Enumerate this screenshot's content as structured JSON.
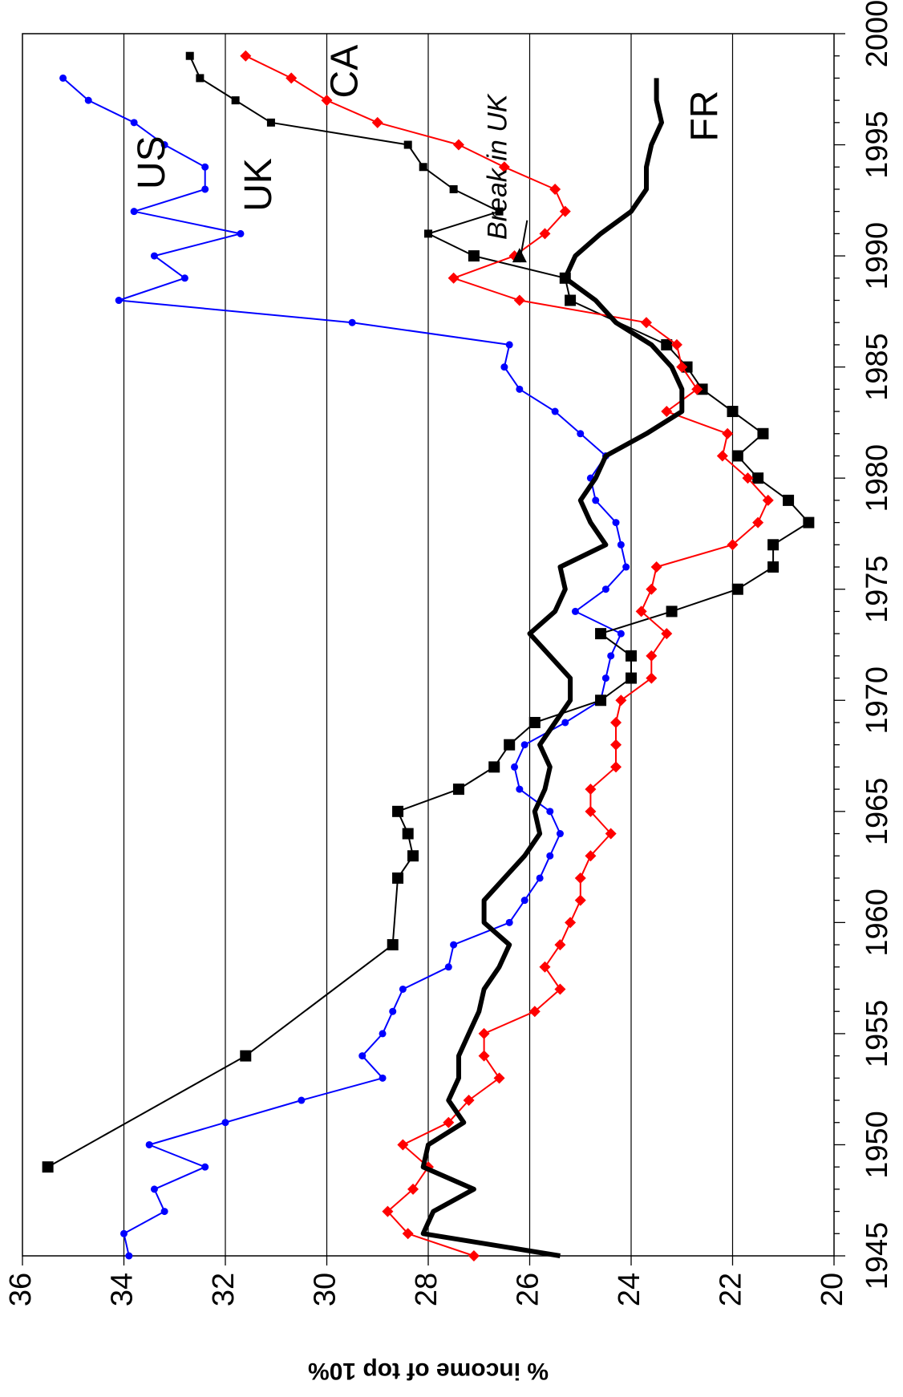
{
  "chart_data": {
    "type": "line",
    "orientation": "rotated-90-clockwise",
    "title": "",
    "xlabel": "",
    "ylabel": "% income of top 10%",
    "xlim": [
      1945,
      2000
    ],
    "ylim": [
      20,
      36
    ],
    "xticks": [
      1945,
      1950,
      1955,
      1960,
      1965,
      1970,
      1975,
      1980,
      1985,
      1990,
      1995,
      2000
    ],
    "yticks": [
      20,
      22,
      24,
      26,
      28,
      30,
      32,
      34,
      36
    ],
    "grid": "horizontal-major",
    "series": [
      {
        "label": "US",
        "color": "#0000ff",
        "marker": "circle",
        "points": [
          [
            1945,
            33.9
          ],
          [
            1946,
            34.0
          ],
          [
            1947,
            33.2
          ],
          [
            1948,
            33.4
          ],
          [
            1949,
            32.4
          ],
          [
            1950,
            33.5
          ],
          [
            1951,
            32.0
          ],
          [
            1952,
            30.5
          ],
          [
            1953,
            28.9
          ],
          [
            1954,
            29.3
          ],
          [
            1955,
            28.9
          ],
          [
            1956,
            28.7
          ],
          [
            1957,
            28.5
          ],
          [
            1958,
            27.6
          ],
          [
            1959,
            27.5
          ],
          [
            1960,
            26.4
          ],
          [
            1961,
            26.1
          ],
          [
            1962,
            25.8
          ],
          [
            1963,
            25.6
          ],
          [
            1964,
            25.4
          ],
          [
            1965,
            25.6
          ],
          [
            1966,
            26.2
          ],
          [
            1967,
            26.3
          ],
          [
            1968,
            26.1
          ],
          [
            1969,
            25.3
          ],
          [
            1970,
            24.6
          ],
          [
            1971,
            24.5
          ],
          [
            1972,
            24.4
          ],
          [
            1973,
            24.2
          ],
          [
            1974,
            25.1
          ],
          [
            1975,
            24.5
          ],
          [
            1976,
            24.1
          ],
          [
            1977,
            24.2
          ],
          [
            1978,
            24.3
          ],
          [
            1979,
            24.7
          ],
          [
            1980,
            24.8
          ],
          [
            1981,
            24.5
          ],
          [
            1982,
            25.0
          ],
          [
            1983,
            25.5
          ],
          [
            1984,
            26.2
          ],
          [
            1985,
            26.5
          ],
          [
            1986,
            26.4
          ],
          [
            1987,
            29.5
          ],
          [
            1988,
            34.1
          ],
          [
            1989,
            32.8
          ],
          [
            1990,
            33.4
          ],
          [
            1991,
            31.7
          ],
          [
            1992,
            33.8
          ],
          [
            1993,
            32.4
          ],
          [
            1994,
            32.4
          ],
          [
            1995,
            33.2
          ],
          [
            1996,
            33.8
          ],
          [
            1997,
            34.7
          ],
          [
            1998,
            35.2
          ]
        ]
      },
      {
        "label": "UK",
        "color": "#000000",
        "marker": "square",
        "points": [
          [
            1949,
            35.5
          ],
          [
            1954,
            31.6
          ],
          [
            1959,
            28.7
          ],
          [
            1962,
            28.6
          ],
          [
            1963,
            28.3
          ],
          [
            1964,
            28.4
          ],
          [
            1965,
            28.6
          ],
          [
            1966,
            27.4
          ],
          [
            1967,
            26.7
          ],
          [
            1968,
            26.4
          ],
          [
            1969,
            25.9
          ],
          [
            1970,
            24.6
          ],
          [
            1971,
            24.0
          ],
          [
            1972,
            24.0
          ],
          [
            1973,
            24.6
          ],
          [
            1974,
            23.2
          ],
          [
            1975,
            21.9
          ],
          [
            1976,
            21.2
          ],
          [
            1977,
            21.2
          ],
          [
            1978,
            20.5
          ],
          [
            1979,
            20.9
          ],
          [
            1980,
            21.5
          ],
          [
            1981,
            21.9
          ],
          [
            1982,
            21.4
          ],
          [
            1983,
            22.0
          ],
          [
            1984,
            22.6
          ],
          [
            1985,
            22.9
          ],
          [
            1986,
            23.3
          ],
          [
            1988,
            25.2
          ],
          [
            1989,
            25.3
          ],
          [
            1990,
            27.1
          ],
          [
            1991,
            28.0
          ],
          [
            1992,
            26.6
          ],
          [
            1993,
            27.5
          ],
          [
            1994,
            28.1
          ],
          [
            1995,
            28.4
          ],
          [
            1996,
            31.1
          ],
          [
            1997,
            31.8
          ],
          [
            1998,
            32.5
          ],
          [
            1999,
            32.7
          ]
        ]
      },
      {
        "label": "CA",
        "color": "#ff0000",
        "marker": "diamond",
        "points": [
          [
            1945,
            27.1
          ],
          [
            1946,
            28.4
          ],
          [
            1947,
            28.8
          ],
          [
            1948,
            28.3
          ],
          [
            1949,
            28.0
          ],
          [
            1950,
            28.5
          ],
          [
            1951,
            27.6
          ],
          [
            1952,
            27.2
          ],
          [
            1953,
            26.6
          ],
          [
            1954,
            26.9
          ],
          [
            1955,
            26.9
          ],
          [
            1956,
            25.9
          ],
          [
            1957,
            25.4
          ],
          [
            1958,
            25.7
          ],
          [
            1959,
            25.4
          ],
          [
            1960,
            25.2
          ],
          [
            1961,
            25.0
          ],
          [
            1962,
            25.0
          ],
          [
            1963,
            24.8
          ],
          [
            1964,
            24.4
          ],
          [
            1965,
            24.8
          ],
          [
            1966,
            24.8
          ],
          [
            1967,
            24.3
          ],
          [
            1968,
            24.3
          ],
          [
            1969,
            24.3
          ],
          [
            1970,
            24.2
          ],
          [
            1971,
            23.6
          ],
          [
            1972,
            23.6
          ],
          [
            1973,
            23.3
          ],
          [
            1974,
            23.8
          ],
          [
            1975,
            23.6
          ],
          [
            1976,
            23.5
          ],
          [
            1977,
            22.0
          ],
          [
            1978,
            21.5
          ],
          [
            1979,
            21.3
          ],
          [
            1980,
            21.7
          ],
          [
            1981,
            22.2
          ],
          [
            1982,
            22.1
          ],
          [
            1983,
            23.3
          ],
          [
            1984,
            22.7
          ],
          [
            1985,
            23.0
          ],
          [
            1986,
            23.1
          ],
          [
            1987,
            23.7
          ],
          [
            1988,
            26.2
          ],
          [
            1989,
            27.5
          ],
          [
            1990,
            26.3
          ],
          [
            1991,
            25.7
          ],
          [
            1992,
            25.3
          ],
          [
            1993,
            25.5
          ],
          [
            1994,
            26.5
          ],
          [
            1995,
            27.4
          ],
          [
            1996,
            29.0
          ],
          [
            1997,
            30.0
          ],
          [
            1998,
            30.7
          ],
          [
            1999,
            31.6
          ]
        ]
      },
      {
        "label": "FR",
        "color": "#000000",
        "marker": "none",
        "points": [
          [
            1945,
            25.4
          ],
          [
            1946,
            28.1
          ],
          [
            1947,
            27.9
          ],
          [
            1948,
            27.1
          ],
          [
            1949,
            28.1
          ],
          [
            1950,
            28.0
          ],
          [
            1951,
            27.3
          ],
          [
            1952,
            27.6
          ],
          [
            1953,
            27.4
          ],
          [
            1954,
            27.4
          ],
          [
            1955,
            27.2
          ],
          [
            1956,
            27.0
          ],
          [
            1957,
            26.9
          ],
          [
            1958,
            26.6
          ],
          [
            1959,
            26.4
          ],
          [
            1960,
            26.9
          ],
          [
            1961,
            26.9
          ],
          [
            1962,
            26.5
          ],
          [
            1963,
            26.1
          ],
          [
            1964,
            25.8
          ],
          [
            1965,
            25.9
          ],
          [
            1966,
            25.7
          ],
          [
            1967,
            25.6
          ],
          [
            1968,
            25.8
          ],
          [
            1969,
            25.5
          ],
          [
            1970,
            25.2
          ],
          [
            1971,
            25.2
          ],
          [
            1972,
            25.6
          ],
          [
            1973,
            26.0
          ],
          [
            1974,
            25.5
          ],
          [
            1975,
            25.3
          ],
          [
            1976,
            25.4
          ],
          [
            1977,
            24.5
          ],
          [
            1978,
            24.8
          ],
          [
            1979,
            25.0
          ],
          [
            1980,
            24.7
          ],
          [
            1981,
            24.5
          ],
          [
            1982,
            23.7
          ],
          [
            1983,
            23.0
          ],
          [
            1984,
            23.0
          ],
          [
            1985,
            23.2
          ],
          [
            1986,
            23.6
          ],
          [
            1987,
            24.3
          ],
          [
            1988,
            24.7
          ],
          [
            1989,
            25.3
          ],
          [
            1990,
            25.1
          ],
          [
            1991,
            24.6
          ],
          [
            1992,
            24.0
          ],
          [
            1993,
            23.7
          ],
          [
            1994,
            23.7
          ],
          [
            1995,
            23.6
          ],
          [
            1996,
            23.4
          ],
          [
            1997,
            23.5
          ],
          [
            1998,
            23.5
          ]
        ]
      }
    ],
    "annotations": [
      {
        "text": "Break in UK",
        "x": 1992,
        "y": 26.5,
        "arrow_to": [
          1990,
          26.2
        ]
      }
    ]
  }
}
